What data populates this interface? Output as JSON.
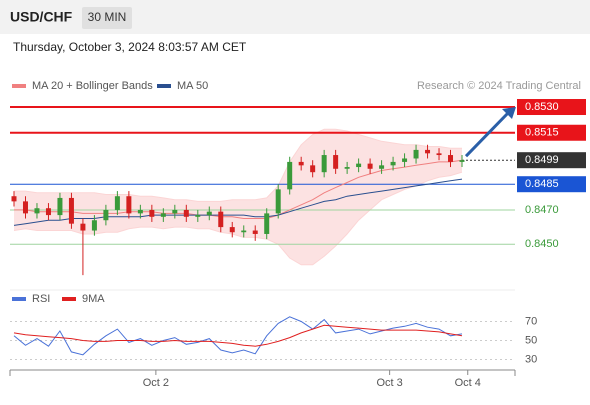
{
  "header": {
    "symbol": "USD/CHF",
    "interval": "30 MIN",
    "datetime": "Thursday, October 3, 2024 8:03:57 AM CET"
  },
  "chart_data": [
    {
      "type": "candlestick",
      "source": "Research © 2024 Trading Central",
      "ylim": [
        0.8428,
        0.8537
      ],
      "xticks": [
        {
          "value": 12.35,
          "label": "Oct 2"
        },
        {
          "value": 32.7,
          "label": "Oct 3"
        },
        {
          "value": 39.5,
          "label": "Oct 4"
        }
      ],
      "up_color": "#3a9a3a",
      "down_color": "#d42020",
      "open": [
        0.8478,
        0.8475,
        0.8468,
        0.8471,
        0.8467,
        0.8477,
        0.8462,
        0.8458,
        0.8464,
        0.847,
        0.8478,
        0.8468,
        0.847,
        0.8466,
        0.8468,
        0.847,
        0.8466,
        0.8467,
        0.8469,
        0.846,
        0.8457,
        0.8458,
        0.8456,
        0.8468,
        0.8482,
        0.8498,
        0.8496,
        0.8492,
        0.8502,
        0.8494,
        0.8495,
        0.8497,
        0.8494,
        0.8496,
        0.8498,
        0.85,
        0.8505,
        0.8503,
        0.8502,
        0.8498
      ],
      "high": [
        0.8481,
        0.8478,
        0.8474,
        0.8474,
        0.848,
        0.848,
        0.8465,
        0.8467,
        0.8473,
        0.8481,
        0.8481,
        0.8473,
        0.8473,
        0.8471,
        0.8473,
        0.8473,
        0.847,
        0.8472,
        0.8472,
        0.8463,
        0.8461,
        0.8461,
        0.8471,
        0.8485,
        0.8501,
        0.8501,
        0.8499,
        0.8505,
        0.8505,
        0.8498,
        0.85,
        0.85,
        0.8499,
        0.8501,
        0.8503,
        0.8508,
        0.8508,
        0.8506,
        0.8505,
        0.8502
      ],
      "low": [
        0.8472,
        0.8465,
        0.8465,
        0.8464,
        0.8464,
        0.8459,
        0.8432,
        0.8455,
        0.8461,
        0.8467,
        0.8465,
        0.8465,
        0.8463,
        0.8463,
        0.8465,
        0.8463,
        0.8463,
        0.8464,
        0.8457,
        0.8454,
        0.8454,
        0.8452,
        0.8453,
        0.8465,
        0.8479,
        0.8493,
        0.8489,
        0.8489,
        0.8491,
        0.8491,
        0.8492,
        0.8491,
        0.8491,
        0.8493,
        0.8495,
        0.8497,
        0.85,
        0.8499,
        0.8495,
        0.8495
      ],
      "close": [
        0.8475,
        0.8468,
        0.8471,
        0.8467,
        0.8477,
        0.8462,
        0.8458,
        0.8464,
        0.847,
        0.8478,
        0.8468,
        0.847,
        0.8466,
        0.8468,
        0.847,
        0.8466,
        0.8467,
        0.8469,
        0.846,
        0.8457,
        0.8458,
        0.8456,
        0.8468,
        0.8482,
        0.8498,
        0.8496,
        0.8492,
        0.8502,
        0.8494,
        0.8495,
        0.8497,
        0.8494,
        0.8496,
        0.8498,
        0.85,
        0.8505,
        0.8503,
        0.8502,
        0.8498,
        0.8499
      ],
      "series": [
        {
          "name": "MA 20 + Bollinger Bands",
          "color": "#f08080",
          "values": [
            0.847,
            0.847,
            0.8469,
            0.8469,
            0.8469,
            0.8469,
            0.8468,
            0.8468,
            0.8468,
            0.8468,
            0.8469,
            0.8469,
            0.8469,
            0.8468,
            0.8468,
            0.8468,
            0.8467,
            0.8467,
            0.8466,
            0.8466,
            0.8465,
            0.8465,
            0.8465,
            0.8467,
            0.847,
            0.8473,
            0.8476,
            0.848,
            0.8483,
            0.8486,
            0.8489,
            0.8491,
            0.8493,
            0.8494,
            0.8495,
            0.8496,
            0.8497,
            0.8498,
            0.8498,
            0.8499
          ],
          "upper": [
            0.8481,
            0.8481,
            0.848,
            0.848,
            0.848,
            0.848,
            0.848,
            0.848,
            0.8479,
            0.8479,
            0.8479,
            0.8478,
            0.8478,
            0.8477,
            0.8476,
            0.8476,
            0.8475,
            0.8475,
            0.8475,
            0.8476,
            0.8476,
            0.8476,
            0.8477,
            0.8484,
            0.8498,
            0.8508,
            0.8514,
            0.8517,
            0.8517,
            0.8516,
            0.8514,
            0.8512,
            0.851,
            0.8509,
            0.8508,
            0.8508,
            0.8507,
            0.8507,
            0.8506,
            0.8506
          ],
          "lower": [
            0.8458,
            0.8459,
            0.8458,
            0.8458,
            0.8458,
            0.8458,
            0.8456,
            0.8456,
            0.8457,
            0.8457,
            0.8459,
            0.846,
            0.846,
            0.8459,
            0.846,
            0.846,
            0.8459,
            0.8459,
            0.8457,
            0.8456,
            0.8454,
            0.8454,
            0.8453,
            0.845,
            0.8442,
            0.8438,
            0.8438,
            0.8443,
            0.8449,
            0.8456,
            0.8464,
            0.847,
            0.8476,
            0.8479,
            0.8482,
            0.8484,
            0.8487,
            0.8489,
            0.849,
            0.8492
          ],
          "band_color": "#fbd5d5"
        },
        {
          "name": "MA 50",
          "color": "#2a4f8f",
          "values": [
            0.8461,
            0.8462,
            0.8463,
            0.8464,
            0.8464,
            0.8465,
            0.8465,
            0.8465,
            0.8466,
            0.8466,
            0.8466,
            0.8466,
            0.8467,
            0.8467,
            0.8467,
            0.8467,
            0.8467,
            0.8467,
            0.8467,
            0.8467,
            0.8467,
            0.8466,
            0.8466,
            0.8467,
            0.8469,
            0.8471,
            0.8473,
            0.8475,
            0.8476,
            0.8478,
            0.8479,
            0.848,
            0.8481,
            0.8482,
            0.8483,
            0.8484,
            0.8485,
            0.8486,
            0.8487,
            0.8488
          ]
        }
      ],
      "levels": [
        {
          "value": 0.853,
          "label": "0.8530",
          "color": "#e8141a",
          "boxed": true,
          "width": 2,
          "dash": false,
          "full": true
        },
        {
          "value": 0.8515,
          "label": "0.8515",
          "color": "#e8141a",
          "boxed": true,
          "width": 2,
          "dash": false,
          "full": true
        },
        {
          "value": 0.8499,
          "label": "0.8499",
          "color": "#333333",
          "boxed": true,
          "width": 1,
          "dash": true,
          "full": false
        },
        {
          "value": 0.8485,
          "label": "0.8485",
          "color": "#1a55d4",
          "boxed": true,
          "width": 1,
          "dash": false,
          "full": true
        },
        {
          "value": 0.847,
          "label": "0.8470",
          "color": "#3a9a3a",
          "boxed": false,
          "width": 1,
          "dash": false,
          "full": true
        },
        {
          "value": 0.845,
          "label": "0.8450",
          "color": "#3a9a3a",
          "boxed": false,
          "width": 1,
          "dash": false,
          "full": true
        }
      ]
    },
    {
      "type": "line",
      "ylim": [
        20,
        80
      ],
      "yticks": [
        30,
        50,
        70
      ],
      "series": [
        {
          "name": "RSI",
          "color": "#4a72d8",
          "values": [
            55,
            45,
            52,
            44,
            60,
            38,
            35,
            46,
            55,
            62,
            48,
            52,
            45,
            50,
            53,
            46,
            48,
            52,
            40,
            37,
            40,
            36,
            55,
            68,
            75,
            70,
            62,
            72,
            58,
            60,
            62,
            57,
            60,
            63,
            65,
            68,
            64,
            62,
            55,
            57
          ]
        },
        {
          "name": "9MA",
          "color": "#e02020",
          "values": [
            58,
            56,
            55,
            54,
            53,
            52,
            50,
            49,
            49,
            50,
            50,
            50,
            49,
            49,
            50,
            49,
            49,
            49,
            48,
            47,
            45,
            44,
            46,
            49,
            53,
            58,
            62,
            66,
            65,
            64,
            63,
            62,
            61,
            61,
            61,
            61,
            60,
            59,
            57,
            55
          ]
        }
      ]
    }
  ]
}
